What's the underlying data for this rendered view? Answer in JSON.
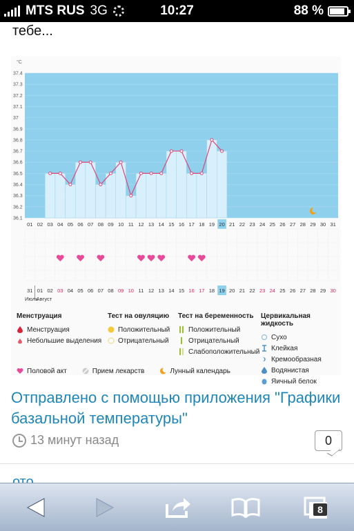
{
  "status": {
    "carrier": "MTS RUS",
    "network": "3G",
    "time": "10:27",
    "battery": "88 %"
  },
  "cut_text": "тебе...",
  "chart_data": {
    "type": "line",
    "unit": "°C",
    "y_ticks": [
      "37.4",
      "37.3",
      "37.2",
      "37.1",
      "37",
      "36.9",
      "36.8",
      "36.7",
      "36.6",
      "36.5",
      "36.4",
      "36.3",
      "36.2",
      "36.1"
    ],
    "ylim": [
      36.1,
      37.4
    ],
    "cycle_days": [
      "01",
      "02",
      "03",
      "04",
      "05",
      "06",
      "07",
      "08",
      "09",
      "10",
      "11",
      "12",
      "13",
      "14",
      "15",
      "16",
      "17",
      "18",
      "19",
      "20",
      "21",
      "22",
      "23",
      "24",
      "25",
      "26",
      "27",
      "28",
      "29",
      "30",
      "31"
    ],
    "highlight_cycle_day": "20",
    "temps": [
      null,
      null,
      36.5,
      36.5,
      36.4,
      36.6,
      36.6,
      36.4,
      36.5,
      36.6,
      36.3,
      36.5,
      36.5,
      36.5,
      36.7,
      36.7,
      36.5,
      36.5,
      36.8,
      36.7
    ],
    "dates": [
      "31",
      "01",
      "02",
      "03",
      "04",
      "05",
      "06",
      "07",
      "08",
      "09",
      "10",
      "11",
      "12",
      "13",
      "14",
      "15",
      "16",
      "17",
      "18",
      "19",
      "20",
      "21",
      "22",
      "23",
      "24",
      "25",
      "26",
      "27",
      "28",
      "29",
      "30"
    ],
    "red_dates": [
      "03",
      "09",
      "10",
      "16",
      "17",
      "23",
      "24",
      "30"
    ],
    "highlight_date": "19",
    "heart_days": [
      "04",
      "06",
      "08",
      "12",
      "13",
      "14",
      "17",
      "18"
    ],
    "moon_day": "29",
    "month_labels": [
      "Июль",
      "Август"
    ]
  },
  "legend": {
    "menstruation": {
      "title": "Менструация",
      "items": [
        "Менструация",
        "Небольшие выделения"
      ]
    },
    "ovulation": {
      "title": "Тест на овуляцию",
      "items": [
        "Положительный",
        "Отрицательный"
      ]
    },
    "pregnancy": {
      "title": "Тест на беременность",
      "items": [
        "Положительный",
        "Отрицательный",
        "Слабоположительный"
      ]
    },
    "cervical": {
      "title": "Цервикальная жидкость",
      "items": [
        "Сухо",
        "Клейкая",
        "Кремообразная",
        "Водянистая",
        "Яичный белок"
      ]
    },
    "bottom": [
      "Половой акт",
      "Прием лекарств",
      "Лунный календарь"
    ]
  },
  "post": {
    "title": "Отправлено с помощью приложения \"Графики базальной температуры\"",
    "time": "13 минут назад",
    "comments": "0",
    "peek": "ото"
  },
  "toolbar": {
    "tabs": "8"
  },
  "colors": {
    "plot_bg": "#8fd0ed",
    "bar": "#d8f0fb",
    "line": "#e0457a",
    "heart": "#e84a9a",
    "link": "#1f86b8"
  }
}
